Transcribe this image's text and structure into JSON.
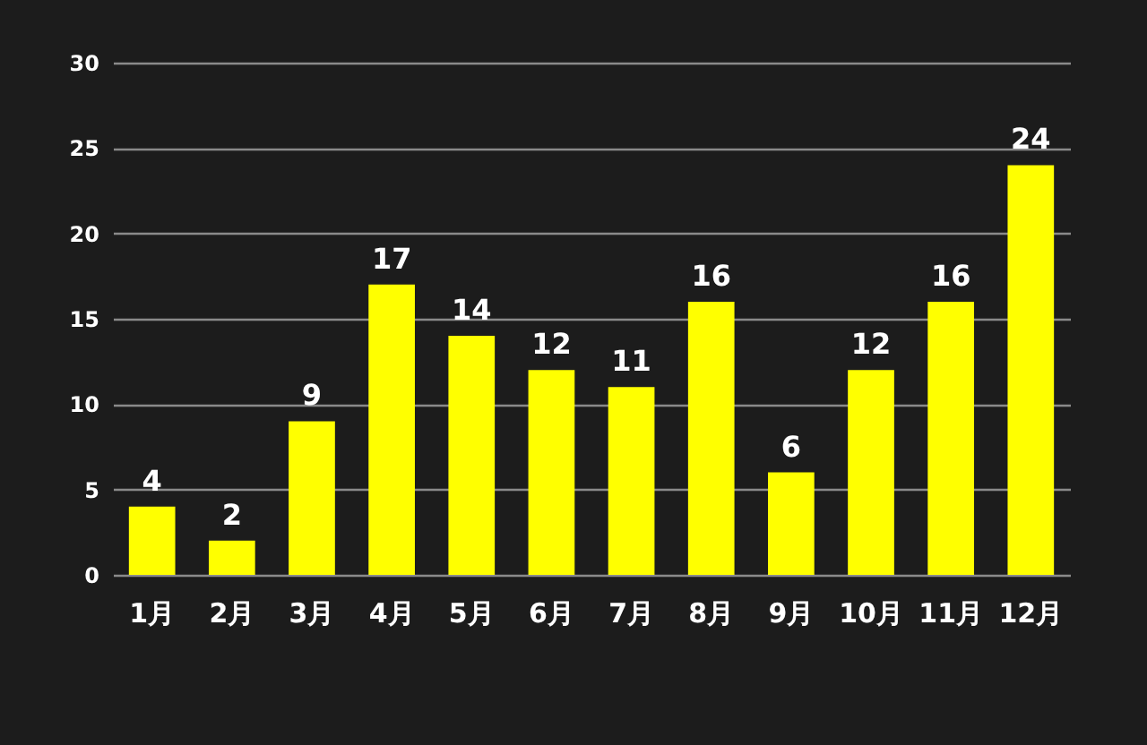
{
  "chart_data": {
    "type": "bar",
    "categories": [
      "1月",
      "2月",
      "3月",
      "4月",
      "5月",
      "6月",
      "7月",
      "8月",
      "9月",
      "10月",
      "11月",
      "12月"
    ],
    "values": [
      4,
      2,
      9,
      17,
      14,
      12,
      11,
      16,
      6,
      12,
      16,
      24
    ],
    "color": "#ffff00",
    "ylim": [
      0,
      30
    ],
    "yticks": [
      0,
      5,
      10,
      15,
      20,
      25,
      30
    ],
    "grid": "y",
    "data_labels": true
  }
}
